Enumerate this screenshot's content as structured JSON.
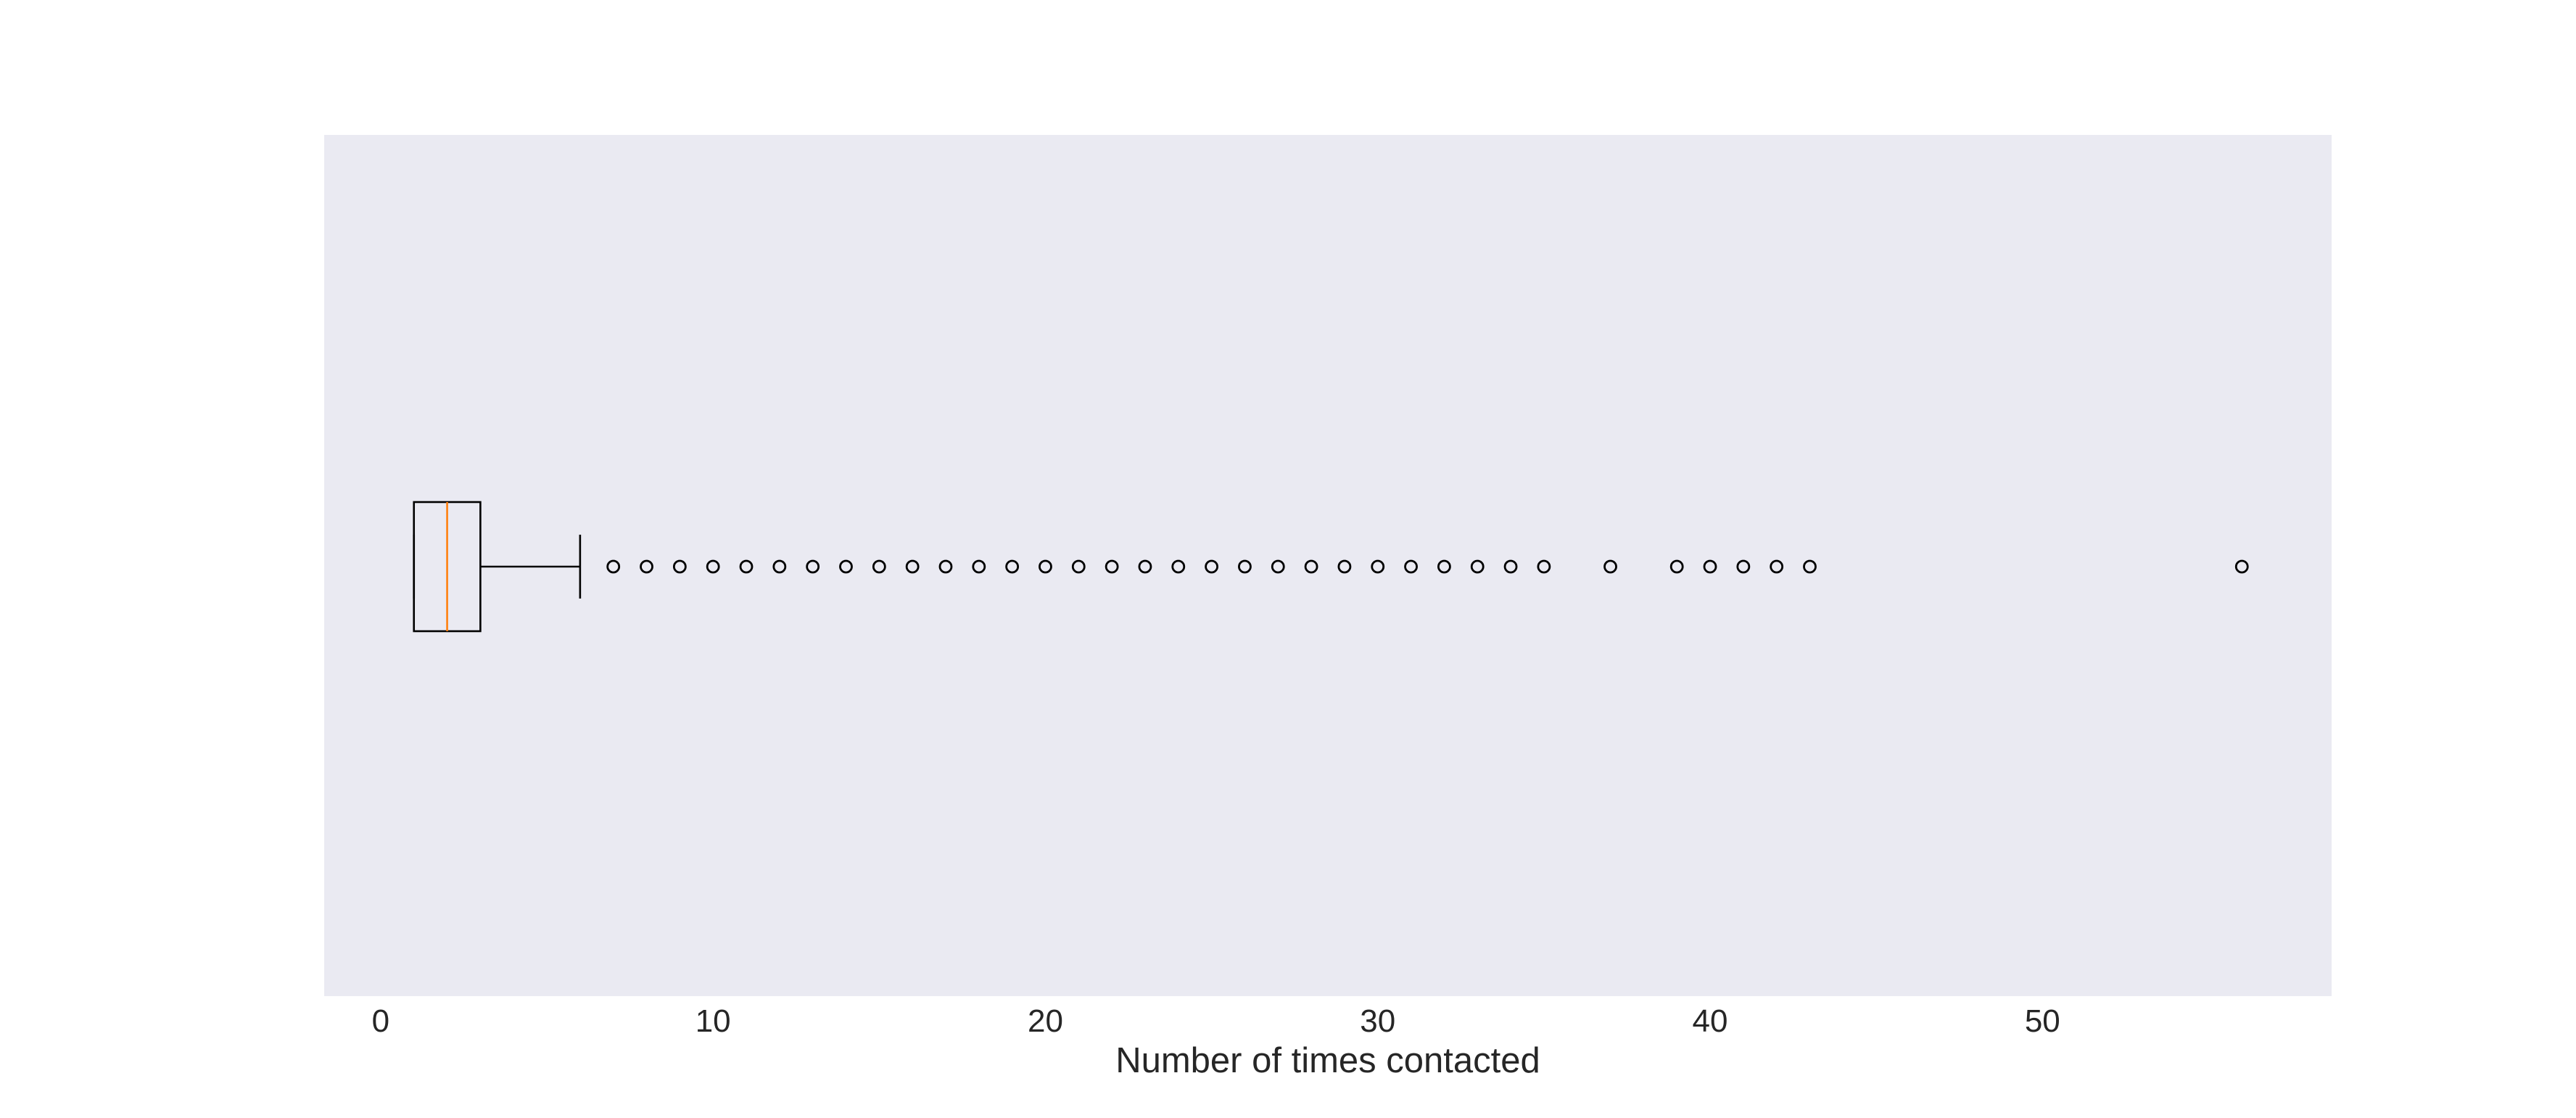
{
  "chart_data": {
    "type": "boxplot",
    "orientation": "horizontal",
    "title": "",
    "xlabel": "Number of times contacted",
    "ylabel": "",
    "xlim": [
      -1.7,
      58.7
    ],
    "xticks": [
      0,
      10,
      20,
      30,
      40,
      50
    ],
    "xtick_labels": [
      "0",
      "10",
      "20",
      "30",
      "40",
      "50"
    ],
    "grid": false,
    "box": {
      "whisker_low": 1,
      "q1": 1,
      "median": 2,
      "q3": 3,
      "whisker_high": 6
    },
    "outliers": [
      7,
      8,
      9,
      10,
      11,
      12,
      13,
      14,
      15,
      16,
      17,
      18,
      19,
      20,
      21,
      22,
      23,
      24,
      25,
      26,
      27,
      28,
      29,
      30,
      31,
      32,
      33,
      34,
      35,
      37,
      39,
      40,
      41,
      42,
      43,
      56
    ],
    "colors": {
      "background": "#eaeaf2",
      "box": "#000000",
      "median": "#ff7f0e",
      "text": "#262626"
    }
  }
}
